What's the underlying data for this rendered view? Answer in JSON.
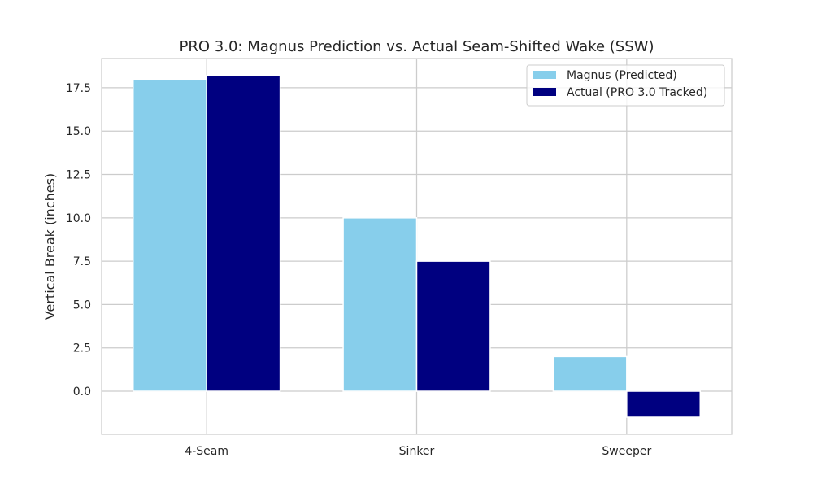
{
  "chart_data": {
    "type": "bar",
    "title": "PRO 3.0: Magnus Prediction vs. Actual Seam-Shifted Wake (SSW)",
    "xlabel": "",
    "ylabel": "Vertical Break (inches)",
    "categories": [
      "4-Seam",
      "Sinker",
      "Sweeper"
    ],
    "series": [
      {
        "name": "Magnus (Predicted)",
        "values": [
          18.0,
          10.0,
          2.0
        ],
        "color": "#87CEEB"
      },
      {
        "name": "Actual (PRO 3.0 Tracked)",
        "values": [
          18.2,
          7.5,
          -1.5
        ],
        "color": "#000080"
      }
    ],
    "ylim": [
      -2.485,
      19.185
    ],
    "yticks": [
      "0.0",
      "2.5",
      "5.0",
      "7.5",
      "10.0",
      "12.5",
      "15.0",
      "17.5"
    ],
    "grid": true,
    "legend_position": "top-right"
  }
}
